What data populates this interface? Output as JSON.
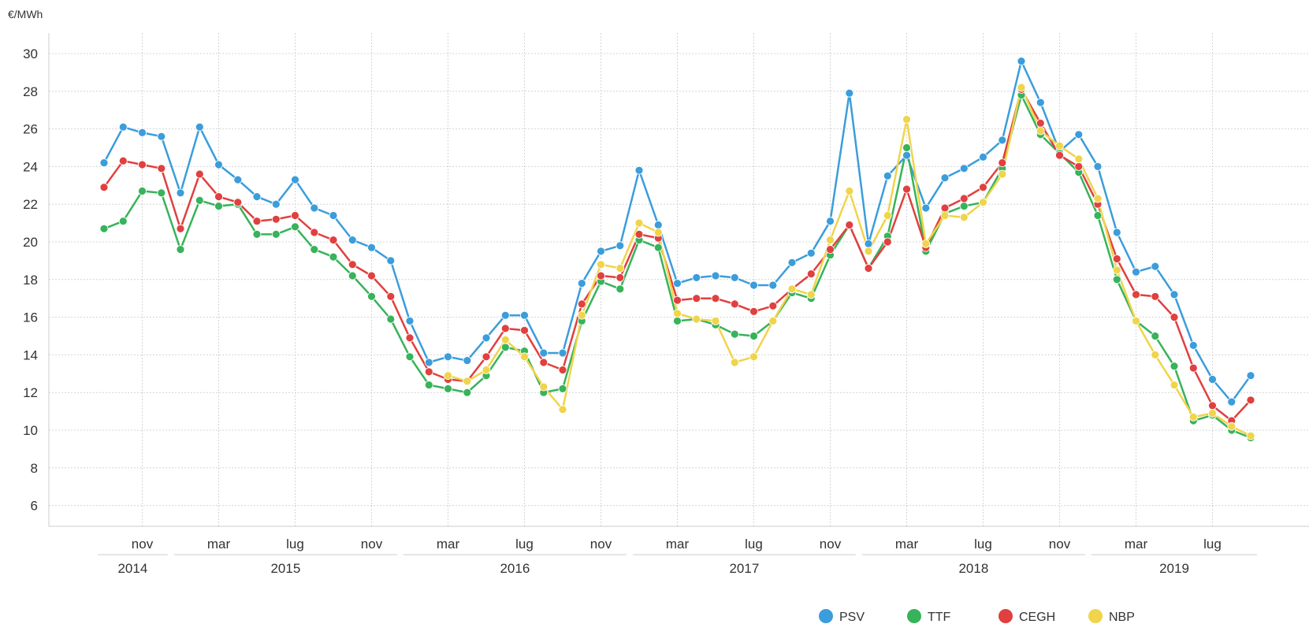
{
  "chart_data": {
    "type": "line",
    "ylabel": "€/MWh",
    "ylim": [
      5,
      31
    ],
    "yticks": [
      6,
      8,
      10,
      12,
      14,
      16,
      18,
      20,
      22,
      24,
      26,
      28,
      30
    ],
    "x_start": "2014-09",
    "x_end": "2019-09",
    "month_tick_labels": [
      {
        "month": "2014-11",
        "label": "nov"
      },
      {
        "month": "2015-03",
        "label": "mar"
      },
      {
        "month": "2015-07",
        "label": "lug"
      },
      {
        "month": "2015-11",
        "label": "nov"
      },
      {
        "month": "2016-03",
        "label": "mar"
      },
      {
        "month": "2016-07",
        "label": "lug"
      },
      {
        "month": "2016-11",
        "label": "nov"
      },
      {
        "month": "2017-03",
        "label": "mar"
      },
      {
        "month": "2017-07",
        "label": "lug"
      },
      {
        "month": "2017-11",
        "label": "nov"
      },
      {
        "month": "2018-03",
        "label": "mar"
      },
      {
        "month": "2018-07",
        "label": "lug"
      },
      {
        "month": "2018-11",
        "label": "nov"
      },
      {
        "month": "2019-03",
        "label": "mar"
      },
      {
        "month": "2019-07",
        "label": "lug"
      }
    ],
    "year_labels": [
      {
        "label": "2014",
        "from": "2014-09",
        "to": "2014-12"
      },
      {
        "label": "2015",
        "from": "2015-01",
        "to": "2015-12"
      },
      {
        "label": "2016",
        "from": "2016-01",
        "to": "2016-12"
      },
      {
        "label": "2017",
        "from": "2017-01",
        "to": "2017-12"
      },
      {
        "label": "2018",
        "from": "2018-01",
        "to": "2018-12"
      },
      {
        "label": "2019",
        "from": "2019-01",
        "to": "2019-09"
      }
    ],
    "legend_position": "bottom-right",
    "grid": true,
    "series": [
      {
        "name": "PSV",
        "color": "#3b9ddb",
        "start": "2014-09",
        "values": [
          24.2,
          26.1,
          25.8,
          25.6,
          22.6,
          26.1,
          24.1,
          23.3,
          22.4,
          22.0,
          23.3,
          21.8,
          21.4,
          20.1,
          19.7,
          19.0,
          15.8,
          13.6,
          13.9,
          13.7,
          14.9,
          16.1,
          16.1,
          14.1,
          14.1,
          17.8,
          19.5,
          19.8,
          23.8,
          20.9,
          17.8,
          18.1,
          18.2,
          18.1,
          17.7,
          17.7,
          18.9,
          19.4,
          21.1,
          27.9,
          19.9,
          23.5,
          24.6,
          21.8,
          23.4,
          23.9,
          24.5,
          25.4,
          29.6,
          27.4,
          24.8,
          25.7,
          24.0,
          20.5,
          18.4,
          18.7,
          17.2,
          14.5,
          12.7,
          11.5,
          12.9
        ]
      },
      {
        "name": "TTF",
        "color": "#37b35a",
        "start": "2014-09",
        "values": [
          20.7,
          21.1,
          22.7,
          22.6,
          19.6,
          22.2,
          21.9,
          22.0,
          20.4,
          20.4,
          20.8,
          19.6,
          19.2,
          18.2,
          17.1,
          15.9,
          13.9,
          12.4,
          12.2,
          12.0,
          12.9,
          14.4,
          14.2,
          12.0,
          12.2,
          15.8,
          17.9,
          17.5,
          20.1,
          19.7,
          15.8,
          15.9,
          15.6,
          15.1,
          15.0,
          15.8,
          17.3,
          17.0,
          19.3,
          20.9,
          18.6,
          20.3,
          25.0,
          19.5,
          21.5,
          21.9,
          22.1,
          23.9,
          27.8,
          25.7,
          24.7,
          23.7,
          21.4,
          18.0,
          15.8,
          15.0,
          13.4,
          10.5,
          10.8,
          10.0,
          9.6
        ]
      },
      {
        "name": "CEGH",
        "color": "#e0403f",
        "start": "2014-09",
        "values": [
          22.9,
          24.3,
          24.1,
          23.9,
          20.7,
          23.6,
          22.4,
          22.1,
          21.1,
          21.2,
          21.4,
          20.5,
          20.1,
          18.8,
          18.2,
          17.1,
          14.9,
          13.1,
          12.7,
          12.6,
          13.9,
          15.4,
          15.3,
          13.6,
          13.2,
          16.7,
          18.2,
          18.1,
          20.4,
          20.2,
          16.9,
          17.0,
          17.0,
          16.7,
          16.3,
          16.6,
          17.5,
          18.3,
          19.6,
          20.9,
          18.6,
          20.0,
          22.8,
          19.7,
          21.8,
          22.3,
          22.9,
          24.2,
          28.1,
          26.3,
          24.6,
          24.0,
          22.0,
          19.1,
          17.2,
          17.1,
          16.0,
          13.3,
          11.3,
          10.5,
          11.6
        ]
      },
      {
        "name": "NBP",
        "color": "#f0d44a",
        "start": "2016-03",
        "values": [
          12.9,
          12.6,
          13.2,
          14.8,
          13.9,
          12.3,
          11.1,
          16.1,
          18.8,
          18.6,
          21.0,
          20.5,
          16.2,
          15.9,
          15.8,
          13.6,
          13.9,
          15.8,
          17.5,
          17.2,
          20.1,
          22.7,
          19.5,
          21.4,
          26.5,
          19.9,
          21.4,
          21.3,
          22.1,
          23.6,
          28.2,
          25.9,
          25.1,
          24.4,
          22.3,
          18.5,
          15.8,
          14.0,
          12.4,
          10.7,
          10.9,
          10.2,
          9.7
        ]
      }
    ]
  }
}
